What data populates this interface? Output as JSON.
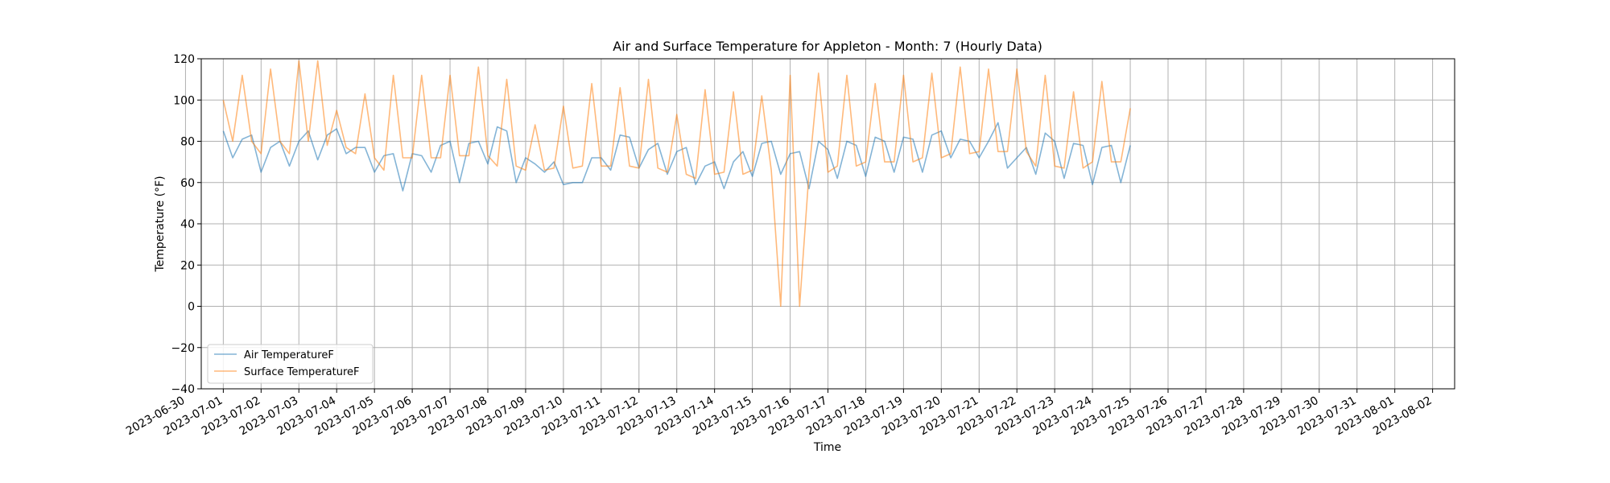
{
  "chart_data": {
    "type": "line",
    "title": "Air and Surface Temperature for Appleton - Month: 7 (Hourly Data)",
    "xlabel": "Time",
    "ylabel": "Temperature (°F)",
    "ylim": [
      -40,
      120
    ],
    "yticks": [
      -40,
      -20,
      0,
      20,
      40,
      60,
      80,
      100,
      120
    ],
    "xlim": [
      "2023-06-30T10:00",
      "2023-08-02T14:00"
    ],
    "xticks": [
      "2023-06-30",
      "2023-07-01",
      "2023-07-02",
      "2023-07-03",
      "2023-07-04",
      "2023-07-05",
      "2023-07-06",
      "2023-07-07",
      "2023-07-08",
      "2023-07-09",
      "2023-07-10",
      "2023-07-11",
      "2023-07-12",
      "2023-07-13",
      "2023-07-14",
      "2023-07-15",
      "2023-07-16",
      "2023-07-17",
      "2023-07-18",
      "2023-07-19",
      "2023-07-20",
      "2023-07-21",
      "2023-07-22",
      "2023-07-23",
      "2023-07-24",
      "2023-07-25",
      "2023-07-26",
      "2023-07-27",
      "2023-07-28",
      "2023-07-29",
      "2023-07-30",
      "2023-07-31",
      "2023-08-01",
      "2023-08-02"
    ],
    "grid": true,
    "legend_position": "lower-left",
    "series": [
      {
        "name": "Air TemperatureF",
        "color": "#1f77b4",
        "x_start": "2023-07-01T00:00",
        "x_step_hours": 6,
        "values": [
          85,
          72,
          81,
          83,
          65,
          77,
          80,
          68,
          80,
          85,
          71,
          83,
          86,
          74,
          77,
          77,
          65,
          73,
          74,
          56,
          74,
          73,
          65,
          78,
          80,
          60,
          79,
          80,
          69,
          87,
          85,
          60,
          72,
          69,
          65,
          70,
          59,
          60,
          60,
          72,
          72,
          66,
          83,
          82,
          67,
          76,
          79,
          64,
          75,
          77,
          59,
          68,
          70,
          57,
          70,
          75,
          63,
          79,
          80,
          64,
          74,
          75,
          57,
          80,
          76,
          62,
          80,
          78,
          63,
          82,
          80,
          65,
          82,
          81,
          65,
          83,
          85,
          72,
          81,
          80,
          72,
          80,
          89,
          67,
          72,
          77,
          64,
          84,
          80,
          62,
          79,
          78,
          59,
          77,
          78,
          60,
          78
        ]
      },
      {
        "name": "Surface TemperatureF",
        "color": "#ff7f0e",
        "x_start": "2023-07-01T00:00",
        "x_step_hours": 6,
        "values": [
          100,
          80,
          112,
          80,
          74,
          115,
          80,
          74,
          119,
          80,
          119,
          78,
          95,
          77,
          74,
          103,
          72,
          66,
          112,
          72,
          72,
          112,
          72,
          72,
          112,
          73,
          73,
          116,
          73,
          68,
          110,
          68,
          66,
          88,
          66,
          67,
          97,
          67,
          68,
          108,
          68,
          68,
          106,
          68,
          67,
          110,
          67,
          65,
          93,
          64,
          62,
          105,
          64,
          65,
          104,
          64,
          66,
          102,
          66,
          0,
          112,
          0,
          65,
          113,
          65,
          68,
          112,
          68,
          70,
          108,
          70,
          70,
          112,
          70,
          72,
          113,
          72,
          74,
          116,
          74,
          75,
          115,
          75,
          75,
          115,
          75,
          68,
          112,
          68,
          67,
          104,
          67,
          70,
          109,
          70,
          70,
          96
        ]
      }
    ]
  }
}
